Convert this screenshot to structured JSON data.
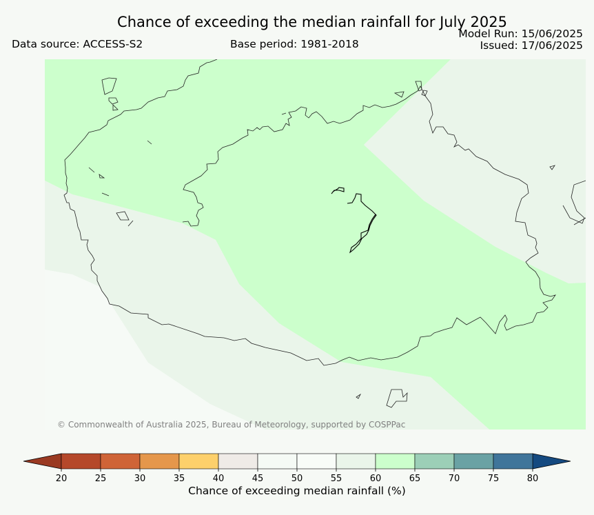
{
  "title": "Chance of exceeding the median rainfall for July 2025",
  "data_source": "Data source: ACCESS-S2",
  "base_period": "Base period: 1981-2018",
  "model_run": "Model Run: 15/06/2025",
  "issued": "Issued: 17/06/2025",
  "credit": "© Commonwealth of Australia 2025, Bureau of Meteorology, supported by COSPPac",
  "colorbar": {
    "label": "Chance of exceeding median rainfall (%)",
    "ticks": [
      "20",
      "25",
      "30",
      "35",
      "40",
      "45",
      "50",
      "55",
      "60",
      "65",
      "70",
      "75",
      "80"
    ],
    "colors": [
      "#b5482a",
      "#cf6437",
      "#e5974b",
      "#fdd06b",
      "#efebe7",
      "#f5faf5",
      "#f8fcf8",
      "#eaf5ea",
      "#ccffcc",
      "#9ccfb7",
      "#6aa2a4",
      "#40759a",
      "#1c4f82"
    ],
    "under_color": "#9a3a22",
    "over_color": "#154a80"
  },
  "map": {
    "region_colors": {
      "green_60_65": "#ccffcc",
      "pale_55_60": "#eaf5ea",
      "white_50_55": "#f6faf6"
    }
  }
}
